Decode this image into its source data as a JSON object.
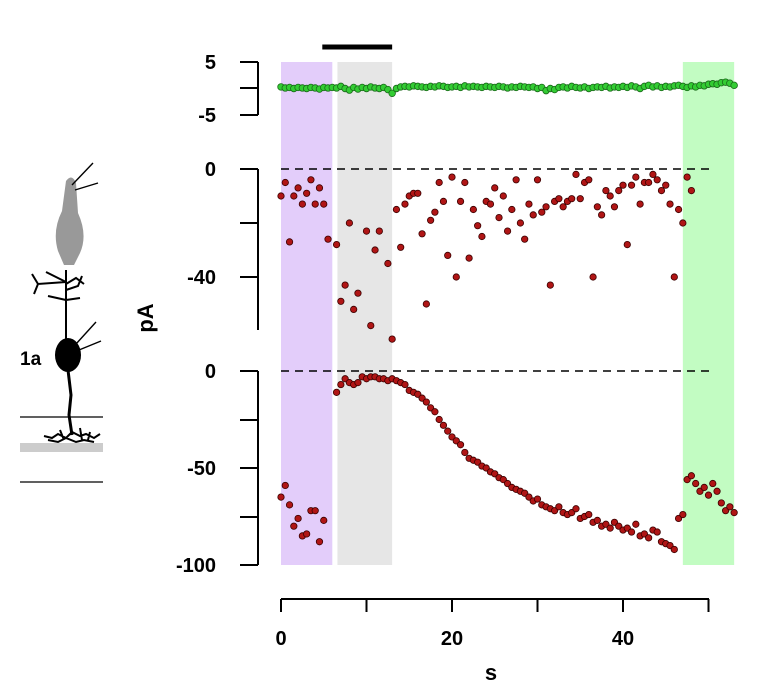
{
  "chart_data": {
    "type": "scatter",
    "xlabel": "s",
    "ylabel": "pA",
    "x_ticks": [
      "0",
      "20",
      "40"
    ],
    "xlim": [
      0,
      53
    ],
    "grid": false,
    "colors": {
      "purple_band": "#e3cdfa",
      "gray_band": "#e6e6e6",
      "green_band": "#c2fcc2",
      "green_points": "#33cc33",
      "red_points": "#b01515",
      "stim_bar": "#000000"
    },
    "bands": [
      {
        "label": "",
        "x0": 0,
        "x1": 6,
        "color": "purple"
      },
      {
        "label": "",
        "x0": 6.6,
        "x1": 13,
        "color": "gray"
      },
      {
        "label": "",
        "x0": 47,
        "x1": 53,
        "color": "green"
      }
    ],
    "stim_bar": [
      6,
      13
    ],
    "panels": [
      {
        "id": "top",
        "y_ticks": [
          "5",
          "-5"
        ],
        "ylim": [
          -5,
          5
        ],
        "dashed_zero": false,
        "points": [
          [
            0,
            0.3
          ],
          [
            0.5,
            0.1
          ],
          [
            1,
            0.2
          ],
          [
            1.5,
            0
          ],
          [
            2,
            0.2
          ],
          [
            2.5,
            0.1
          ],
          [
            3,
            0
          ],
          [
            3.5,
            0.2
          ],
          [
            4,
            0.1
          ],
          [
            4.5,
            -0.1
          ],
          [
            5,
            0.2
          ],
          [
            5.5,
            0.1
          ],
          [
            6,
            0.2
          ],
          [
            6.5,
            0.1
          ],
          [
            7,
            0.4
          ],
          [
            7.5,
            0
          ],
          [
            8,
            -0.3
          ],
          [
            8.5,
            0.2
          ],
          [
            9,
            -0.1
          ],
          [
            9.5,
            0.2
          ],
          [
            10,
            0
          ],
          [
            10.5,
            0.3
          ],
          [
            11,
            0.1
          ],
          [
            11.5,
            0
          ],
          [
            12,
            0.2
          ],
          [
            12.5,
            -0.2
          ],
          [
            13,
            -0.9
          ],
          [
            13.5,
            0
          ],
          [
            14,
            0.3
          ],
          [
            14.5,
            0.4
          ],
          [
            15,
            0.3
          ],
          [
            15.5,
            0.5
          ],
          [
            16,
            0.4
          ],
          [
            16.5,
            0.3
          ],
          [
            17,
            0.2
          ],
          [
            17.5,
            0.4
          ],
          [
            18,
            0.3
          ],
          [
            18.5,
            0.5
          ],
          [
            19,
            0.4
          ],
          [
            19.5,
            0.2
          ],
          [
            20,
            0.3
          ],
          [
            20.5,
            0.4
          ],
          [
            21,
            0.2
          ],
          [
            21.5,
            0.5
          ],
          [
            22,
            0.3
          ],
          [
            22.5,
            0.4
          ],
          [
            23,
            0.3
          ],
          [
            23.5,
            0.2
          ],
          [
            24,
            0.4
          ],
          [
            24.5,
            0.3
          ],
          [
            25,
            0.2
          ],
          [
            25.5,
            0.4
          ],
          [
            26,
            0.3
          ],
          [
            26.5,
            0.1
          ],
          [
            27,
            0.3
          ],
          [
            27.5,
            0.2
          ],
          [
            28,
            0.4
          ],
          [
            28.5,
            0.3
          ],
          [
            29,
            0.2
          ],
          [
            29.5,
            0.3
          ],
          [
            30,
            0
          ],
          [
            30.5,
            0.2
          ],
          [
            31,
            -0.4
          ],
          [
            31.5,
            0
          ],
          [
            32,
            -0.2
          ],
          [
            32.5,
            0.2
          ],
          [
            33,
            0.3
          ],
          [
            33.5,
            0.1
          ],
          [
            34,
            0.4
          ],
          [
            34.5,
            0.2
          ],
          [
            35,
            0.1
          ],
          [
            35.5,
            0.3
          ],
          [
            36,
            0
          ],
          [
            36.5,
            0.2
          ],
          [
            37,
            0.3
          ],
          [
            37.5,
            0.2
          ],
          [
            38,
            0.4
          ],
          [
            38.5,
            0.1
          ],
          [
            39,
            0.3
          ],
          [
            39.5,
            0.2
          ],
          [
            40,
            0.4
          ],
          [
            40.5,
            0.2
          ],
          [
            41,
            0.5
          ],
          [
            41.5,
            0.3
          ],
          [
            42,
            0
          ],
          [
            42.5,
            0.4
          ],
          [
            43,
            0.6
          ],
          [
            43.5,
            0.3
          ],
          [
            44,
            0.5
          ],
          [
            44.5,
            0.2
          ],
          [
            45,
            0.4
          ],
          [
            45.5,
            0.3
          ],
          [
            46,
            0.5
          ],
          [
            46.5,
            0.6
          ],
          [
            47,
            0.4
          ],
          [
            47.5,
            0.2
          ],
          [
            48,
            0.5
          ],
          [
            48.5,
            0.3
          ],
          [
            49,
            0.6
          ],
          [
            49.5,
            0.5
          ],
          [
            50,
            0.8
          ],
          [
            50.5,
            0.9
          ],
          [
            51,
            0.8
          ],
          [
            51.5,
            1.1
          ],
          [
            52,
            1.2
          ],
          [
            52.5,
            1
          ],
          [
            53,
            0.6
          ]
        ]
      },
      {
        "id": "middle",
        "y_ticks": [
          "0",
          "-40"
        ],
        "ylim": [
          -60,
          0
        ],
        "dashed_zero": true,
        "points": [
          [
            0,
            -10
          ],
          [
            0.5,
            -5
          ],
          [
            1,
            -27
          ],
          [
            1.5,
            -10
          ],
          [
            2,
            -7
          ],
          [
            2.5,
            -13
          ],
          [
            3,
            -9
          ],
          [
            3.5,
            -4
          ],
          [
            4,
            -13
          ],
          [
            4.5,
            -7
          ],
          [
            5,
            -13
          ],
          [
            5.5,
            -26
          ],
          [
            6.5,
            -28
          ],
          [
            7,
            -49
          ],
          [
            7.5,
            -43
          ],
          [
            8,
            -20
          ],
          [
            8.5,
            -52
          ],
          [
            9,
            -46
          ],
          [
            10,
            -23
          ],
          [
            10.5,
            -58
          ],
          [
            11,
            -30
          ],
          [
            11.5,
            -23
          ],
          [
            12.5,
            -35
          ],
          [
            13,
            -63
          ],
          [
            13.5,
            -15
          ],
          [
            14,
            -29
          ],
          [
            14.5,
            -13
          ],
          [
            15,
            -10
          ],
          [
            15.5,
            -9
          ],
          [
            16,
            -9
          ],
          [
            16.5,
            -24
          ],
          [
            17,
            -50
          ],
          [
            17.5,
            -19
          ],
          [
            18,
            -16
          ],
          [
            18.5,
            -5
          ],
          [
            19,
            -12
          ],
          [
            19.5,
            -32
          ],
          [
            20,
            -3
          ],
          [
            20.5,
            -40
          ],
          [
            21,
            -12
          ],
          [
            21.5,
            -5
          ],
          [
            22,
            -33
          ],
          [
            22.5,
            -15
          ],
          [
            23,
            -21
          ],
          [
            23.5,
            -25
          ],
          [
            24,
            -12
          ],
          [
            24.5,
            -13
          ],
          [
            25,
            -7
          ],
          [
            25.5,
            -18
          ],
          [
            26,
            -10
          ],
          [
            26.5,
            -23
          ],
          [
            27,
            -15
          ],
          [
            27.5,
            -4
          ],
          [
            28,
            -20
          ],
          [
            28.5,
            -26
          ],
          [
            29,
            -13
          ],
          [
            29.5,
            -17
          ],
          [
            30,
            -4
          ],
          [
            30.5,
            -16
          ],
          [
            31,
            -14
          ],
          [
            31.5,
            -43
          ],
          [
            32,
            -12
          ],
          [
            32.5,
            -11
          ],
          [
            33,
            -14
          ],
          [
            33.5,
            -12
          ],
          [
            34,
            -11
          ],
          [
            34.5,
            -2
          ],
          [
            35,
            -11
          ],
          [
            35.5,
            -5
          ],
          [
            36,
            -4
          ],
          [
            36.5,
            -40
          ],
          [
            37,
            -14
          ],
          [
            37.5,
            -17
          ],
          [
            38,
            -8
          ],
          [
            38.5,
            -10
          ],
          [
            39,
            -14
          ],
          [
            39.5,
            -8
          ],
          [
            40,
            -6
          ],
          [
            40.5,
            -28
          ],
          [
            41,
            -6
          ],
          [
            41.5,
            -3
          ],
          [
            42,
            -13
          ],
          [
            42.5,
            -5
          ],
          [
            43,
            -5
          ],
          [
            43.5,
            -2
          ],
          [
            44,
            -4
          ],
          [
            44.5,
            -8
          ],
          [
            45,
            -6
          ],
          [
            45.5,
            -13
          ],
          [
            46,
            -40
          ],
          [
            46.5,
            -15
          ],
          [
            47,
            -20
          ],
          [
            47.5,
            -3
          ],
          [
            48,
            -8
          ]
        ]
      },
      {
        "id": "bottom",
        "y_ticks": [
          "0",
          "-50",
          "-100"
        ],
        "ylim": [
          -100,
          0
        ],
        "dashed_zero": true,
        "points": [
          [
            0,
            -65
          ],
          [
            0.5,
            -59
          ],
          [
            1,
            -69
          ],
          [
            1.5,
            -80
          ],
          [
            2,
            -76
          ],
          [
            2.5,
            -85
          ],
          [
            3,
            -84
          ],
          [
            3.5,
            -72
          ],
          [
            4,
            -72
          ],
          [
            4.5,
            -88
          ],
          [
            5,
            -77
          ],
          [
            6.5,
            -11
          ],
          [
            7,
            -7
          ],
          [
            7.5,
            -4
          ],
          [
            8,
            -6
          ],
          [
            8.5,
            -7
          ],
          [
            9,
            -6
          ],
          [
            9.5,
            -3
          ],
          [
            10,
            -4
          ],
          [
            10.5,
            -3
          ],
          [
            11,
            -3
          ],
          [
            11.5,
            -4
          ],
          [
            12,
            -4
          ],
          [
            12.5,
            -5
          ],
          [
            13,
            -4
          ],
          [
            13.5,
            -5
          ],
          [
            14,
            -6
          ],
          [
            14.5,
            -7
          ],
          [
            15,
            -10
          ],
          [
            15.5,
            -11
          ],
          [
            16,
            -12
          ],
          [
            16.5,
            -14
          ],
          [
            17,
            -16
          ],
          [
            17.5,
            -19
          ],
          [
            18,
            -21
          ],
          [
            18.5,
            -25
          ],
          [
            19,
            -28
          ],
          [
            19.5,
            -31
          ],
          [
            20,
            -34
          ],
          [
            20.5,
            -36
          ],
          [
            21,
            -38
          ],
          [
            21.5,
            -42
          ],
          [
            22,
            -45
          ],
          [
            22.5,
            -46
          ],
          [
            23,
            -47
          ],
          [
            23.5,
            -49
          ],
          [
            24,
            -50
          ],
          [
            24.5,
            -52
          ],
          [
            25,
            -53
          ],
          [
            25.5,
            -55
          ],
          [
            26,
            -56
          ],
          [
            26.5,
            -58
          ],
          [
            27,
            -60
          ],
          [
            27.5,
            -61
          ],
          [
            28,
            -62
          ],
          [
            28.5,
            -63
          ],
          [
            29,
            -65
          ],
          [
            29.5,
            -67
          ],
          [
            30,
            -66
          ],
          [
            30.5,
            -69
          ],
          [
            31,
            -70
          ],
          [
            31.5,
            -71
          ],
          [
            32,
            -72
          ],
          [
            32.5,
            -70
          ],
          [
            33,
            -73
          ],
          [
            33.5,
            -74
          ],
          [
            34,
            -73
          ],
          [
            34.5,
            -71
          ],
          [
            35,
            -76
          ],
          [
            35.5,
            -75
          ],
          [
            36,
            -74
          ],
          [
            36.5,
            -78
          ],
          [
            37,
            -77
          ],
          [
            37.5,
            -80
          ],
          [
            38,
            -79
          ],
          [
            38.5,
            -81
          ],
          [
            39,
            -78
          ],
          [
            39.5,
            -80
          ],
          [
            40,
            -82
          ],
          [
            40.5,
            -81
          ],
          [
            41,
            -83
          ],
          [
            41.5,
            -79
          ],
          [
            42,
            -85
          ],
          [
            42.5,
            -84
          ],
          [
            43,
            -86
          ],
          [
            43.5,
            -82
          ],
          [
            44,
            -83
          ],
          [
            44.5,
            -88
          ],
          [
            45,
            -89
          ],
          [
            45.5,
            -90
          ],
          [
            46,
            -92
          ],
          [
            46.5,
            -76
          ],
          [
            47,
            -74
          ],
          [
            47.5,
            -56
          ],
          [
            48,
            -54
          ],
          [
            48.5,
            -58
          ],
          [
            49,
            -62
          ],
          [
            49.5,
            -60
          ],
          [
            50,
            -64
          ],
          [
            50.5,
            -58
          ],
          [
            51,
            -62
          ],
          [
            51.5,
            -68
          ],
          [
            52,
            -72
          ],
          [
            52.5,
            -70
          ],
          [
            53,
            -73
          ]
        ]
      }
    ]
  },
  "illustration": {
    "cell_label": "1a"
  }
}
